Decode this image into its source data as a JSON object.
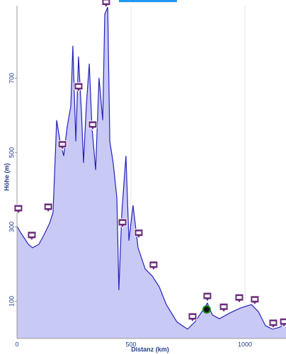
{
  "chart_data": {
    "type": "area",
    "x_label": "Distanz (km)",
    "y_label": "Höhe (m)",
    "x": [
      0,
      19,
      50,
      68,
      96,
      118,
      143,
      158,
      168,
      174,
      189,
      205,
      220,
      236,
      245,
      258,
      270,
      283,
      292,
      304,
      317,
      329,
      345,
      360,
      376,
      385,
      398,
      407,
      422,
      438,
      447,
      460,
      478,
      491,
      509,
      531,
      562,
      593,
      624,
      655,
      702,
      748,
      780,
      811,
      835,
      857,
      888,
      935,
      981,
      1028,
      1059,
      1090,
      1121,
      1152,
      1180
    ],
    "series": [
      {
        "color": "#2424b8",
        "fill": "#c9c9f6",
        "values": [
          301,
          282,
          253,
          244,
          253,
          278,
          310,
          339,
          491,
          587,
          530,
          491,
          568,
          625,
          787,
          530,
          758,
          606,
          472,
          625,
          739,
          568,
          453,
          701,
          587,
          872,
          891,
          530,
          472,
          377,
          130,
          339,
          491,
          263,
          358,
          244,
          187,
          168,
          139,
          91,
          44,
          25,
          44,
          72,
          95,
          63,
          53,
          69,
          82,
          91,
          72,
          34,
          25,
          30,
          44
        ]
      }
    ],
    "markers": {
      "color": "#6a2c7a",
      "x": [
        6,
        65,
        137,
        199,
        270,
        332,
        391,
        463,
        534,
        599,
        770,
        835,
        907,
        975,
        1043,
        1124,
        1171
      ],
      "y": [
        335,
        263,
        339,
        507,
        663,
        560,
        890,
        297,
        269,
        183,
        44,
        99,
        70,
        95,
        90,
        27,
        30
      ]
    },
    "position": {
      "x": 832,
      "y": 78,
      "color": "#1e8a1e"
    },
    "xlim": [
      0,
      1180
    ],
    "ylim": [
      0,
      895
    ],
    "xticks": [
      0,
      500,
      1000
    ],
    "yticks": [
      100,
      300,
      500,
      700
    ],
    "grid": true
  }
}
